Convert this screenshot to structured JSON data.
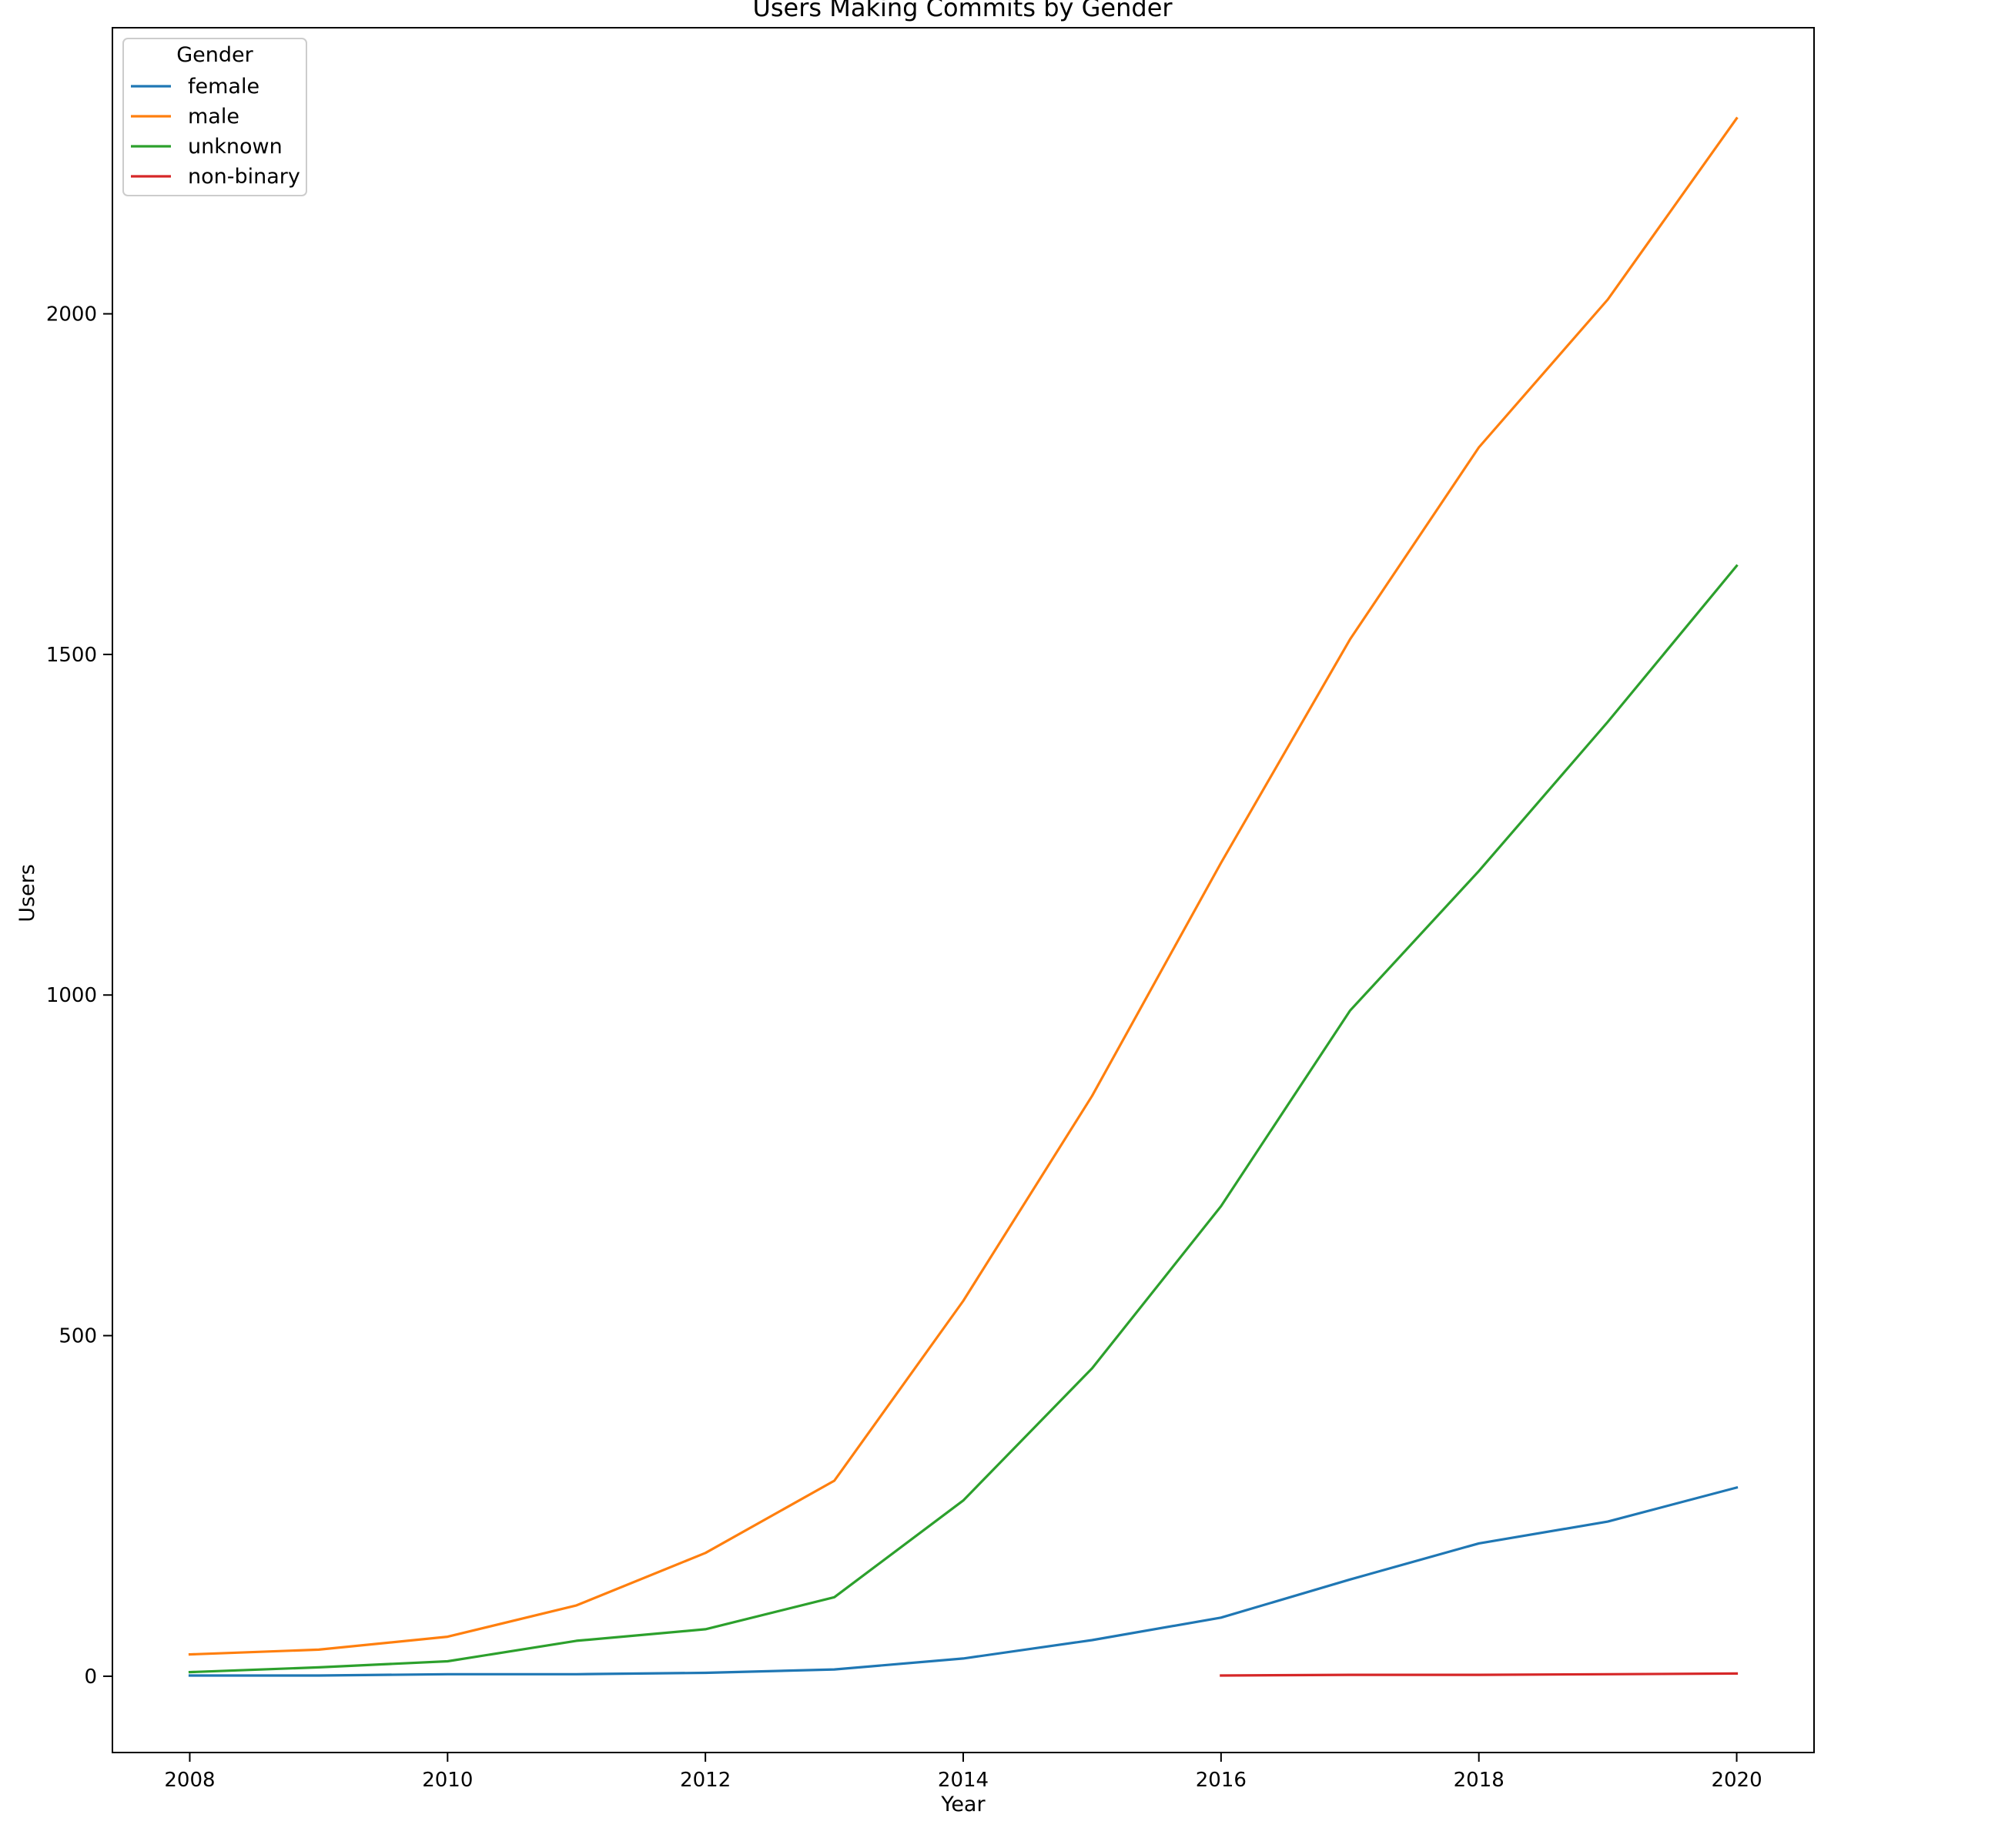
{
  "chart_data": {
    "type": "line",
    "title": "Users Making Commits by Gender",
    "xlabel": "Year",
    "ylabel": "Users",
    "xlim": [
      2007.4,
      2020.6
    ],
    "ylim": [
      -112,
      2420
    ],
    "xticks": [
      2008,
      2010,
      2012,
      2014,
      2016,
      2018,
      2020
    ],
    "yticks": [
      0,
      500,
      1000,
      1500,
      2000
    ],
    "grid": false,
    "legend": {
      "title": "Gender",
      "placement": "top-left"
    },
    "series": [
      {
        "name": "female",
        "color": "#1f77b4",
        "x": [
          2008,
          2009,
          2010,
          2011,
          2012,
          2013,
          2014,
          2015,
          2016,
          2017,
          2018,
          2019,
          2020
        ],
        "y": [
          1,
          1,
          3,
          3,
          5,
          10,
          26,
          53,
          86,
          142,
          195,
          227,
          277
        ]
      },
      {
        "name": "male",
        "color": "#ff7f0e",
        "x": [
          2008,
          2009,
          2010,
          2011,
          2012,
          2013,
          2014,
          2015,
          2016,
          2017,
          2018,
          2019,
          2020
        ],
        "y": [
          32,
          39,
          58,
          104,
          181,
          287,
          551,
          852,
          1194,
          1522,
          1804,
          2021,
          2287
        ]
      },
      {
        "name": "unknown",
        "color": "#2ca02c",
        "x": [
          2008,
          2009,
          2010,
          2011,
          2012,
          2013,
          2014,
          2015,
          2016,
          2017,
          2018,
          2019,
          2020
        ],
        "y": [
          6,
          13,
          22,
          52,
          69,
          116,
          258,
          452,
          690,
          977,
          1182,
          1401,
          1630
        ]
      },
      {
        "name": "non-binary",
        "color": "#d62728",
        "x": [
          2016,
          2017,
          2018,
          2019,
          2020
        ],
        "y": [
          1,
          2,
          2,
          3,
          4
        ]
      }
    ]
  }
}
